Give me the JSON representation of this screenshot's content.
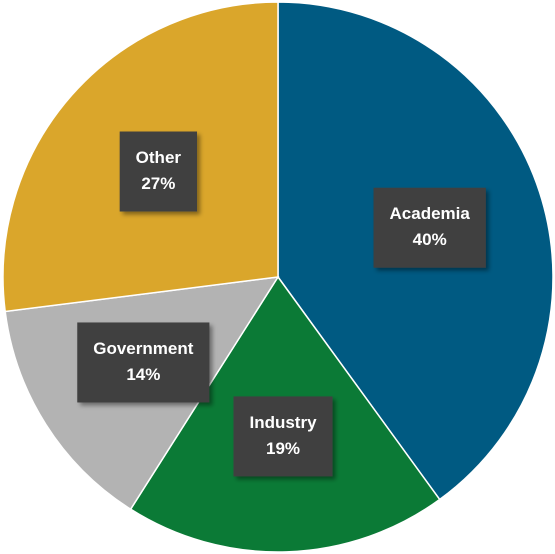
{
  "chart_data": {
    "type": "pie",
    "categories": [
      "Academia",
      "Industry",
      "Government",
      "Other"
    ],
    "values": [
      40,
      19,
      14,
      27
    ],
    "value_labels": [
      "40%",
      "19%",
      "14%",
      "27%"
    ],
    "colors": [
      "#005a82",
      "#0b7a36",
      "#b3b3b3",
      "#daa62b"
    ]
  }
}
